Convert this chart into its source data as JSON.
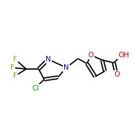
{
  "background_color": "#ffffff",
  "bond_color": "#000000",
  "atom_colors": {
    "Cl": "#00aa00",
    "F": "#cc8800",
    "N": "#0000cc",
    "O": "#cc0000",
    "C": "#000000",
    "H": "#000000"
  },
  "figsize": [
    2.0,
    2.0
  ],
  "dpi": 100,
  "lw": 1.3,
  "fontsize": 7.5
}
